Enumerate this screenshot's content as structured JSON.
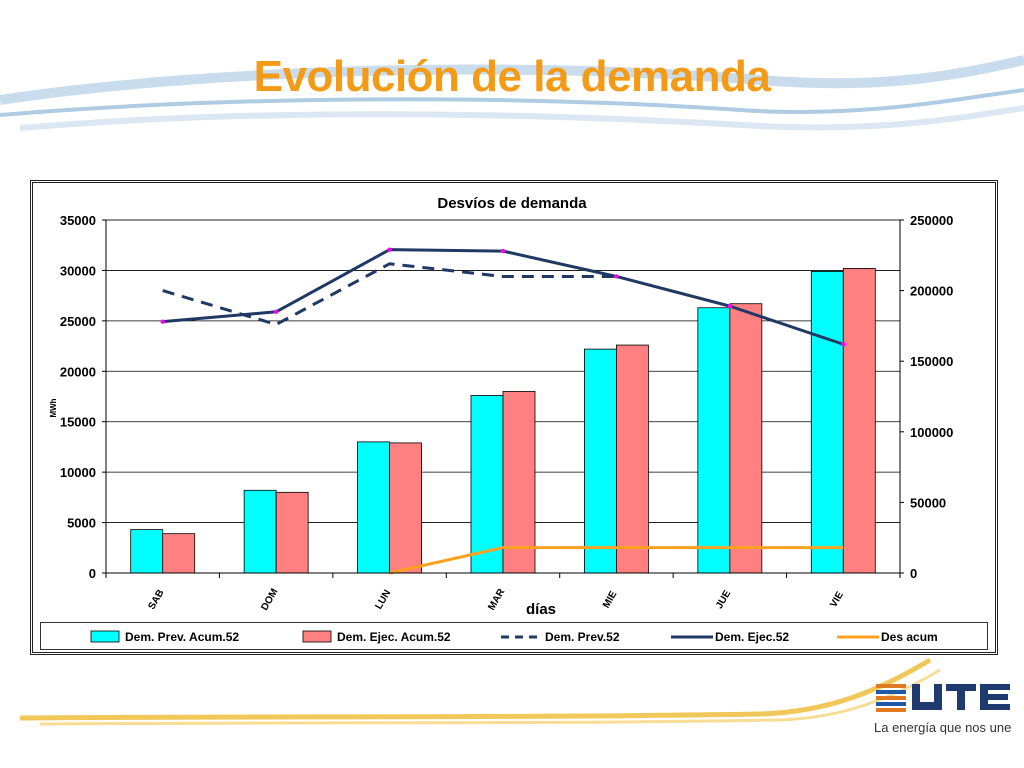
{
  "slide": {
    "title": "Evolución de la demanda",
    "brand": {
      "name": "UTE",
      "tagline": "La energía que nos une"
    },
    "colors": {
      "title": "#f39a16",
      "swoosh_blue": "#aecbe4",
      "swoosh_orange": "#f2b02a"
    }
  },
  "chart_data": {
    "type": "bar",
    "title": "Desvíos de demanda",
    "xlabel": "días",
    "ylabel": "MWh",
    "categories": [
      "SAB",
      "DOM",
      "LUN",
      "MAR",
      "MIE",
      "JUE",
      "VIE"
    ],
    "ylim": [
      0,
      35000
    ],
    "y2lim": [
      0,
      250000
    ],
    "yticks": [
      "0",
      "5000",
      "10000",
      "15000",
      "20000",
      "25000",
      "30000",
      "35000"
    ],
    "y2ticks": [
      "0",
      "50000",
      "100000",
      "150000",
      "200000",
      "250000"
    ],
    "grid": true,
    "legend_position": "bottom",
    "series": [
      {
        "name": "Dem. Prev. Acum.52",
        "kind": "bar",
        "axis": "left",
        "color": "#00ffff",
        "values": [
          4300,
          8200,
          13000,
          17600,
          22200,
          26300,
          29900
        ]
      },
      {
        "name": "Dem. Ejec. Acum.52",
        "kind": "bar",
        "axis": "left",
        "color": "#ff8080",
        "values": [
          3900,
          8000,
          12900,
          18000,
          22600,
          26700,
          30200
        ]
      },
      {
        "name": "Dem. Prev.52",
        "kind": "line",
        "style": "dashed",
        "axis": "right",
        "color": "#1f3864",
        "values": [
          200000,
          176000,
          219000,
          210000,
          210000,
          null,
          null
        ]
      },
      {
        "name": "Dem. Ejec.52",
        "kind": "line",
        "style": "solid",
        "axis": "right",
        "color": "#1f3864",
        "values": [
          178000,
          185000,
          229000,
          228000,
          210000,
          189000,
          162000
        ]
      },
      {
        "name": "Des acum",
        "kind": "line",
        "style": "solid",
        "axis": "right",
        "color": "#ffa020",
        "values": [
          null,
          null,
          0,
          18000,
          18000,
          18000,
          18000
        ]
      }
    ]
  }
}
